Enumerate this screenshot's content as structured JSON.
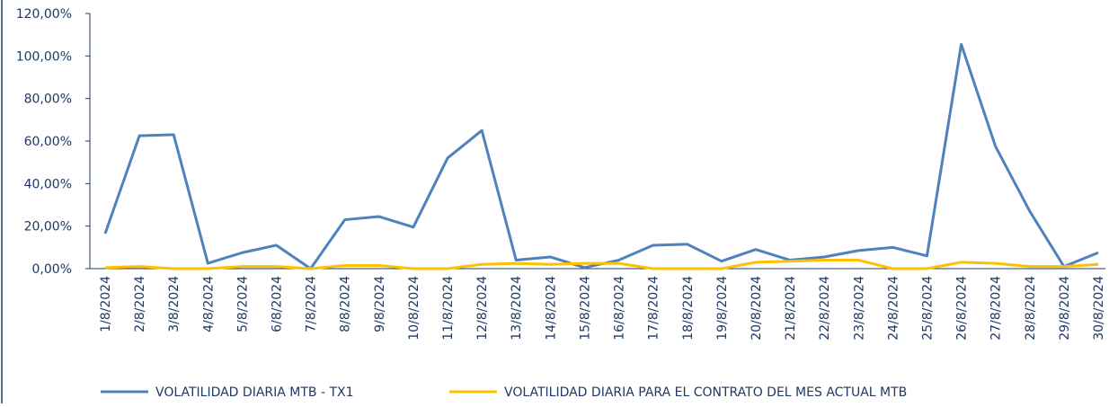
{
  "chart_data": {
    "type": "line",
    "categories": [
      "1/8/2024",
      "2/8/2024",
      "3/8/2024",
      "4/8/2024",
      "5/8/2024",
      "6/8/2024",
      "7/8/2024",
      "8/8/2024",
      "9/8/2024",
      "10/8/2024",
      "11/8/2024",
      "12/8/2024",
      "13/8/2024",
      "14/8/2024",
      "15/8/2024",
      "16/8/2024",
      "17/8/2024",
      "18/8/2024",
      "19/8/2024",
      "20/8/2024",
      "21/8/2024",
      "22/8/2024",
      "23/8/2024",
      "24/8/2024",
      "25/8/2024",
      "26/8/2024",
      "27/8/2024",
      "28/8/2024",
      "29/8/2024",
      "30/8/2024"
    ],
    "series": [
      {
        "name": "VOLATILIDAD DIARIA MTB - TX1",
        "color": "#4f81bd",
        "values": [
          16.5,
          62.5,
          63,
          2.5,
          7.5,
          11,
          0,
          23,
          24.5,
          19.5,
          52,
          65,
          4,
          5.5,
          0.5,
          4,
          11,
          11.5,
          3.5,
          9,
          4,
          5.5,
          8.5,
          10,
          6,
          105.5,
          57.5,
          27,
          1,
          7.5
        ]
      },
      {
        "name": "VOLATILIDAD DIARIA PARA EL CONTRATO DEL MES ACTUAL MTB",
        "color": "#ffc000",
        "values": [
          0.5,
          1,
          0,
          0,
          1,
          1,
          0,
          1.5,
          1.5,
          0,
          0,
          2,
          2.5,
          2,
          2.5,
          2.5,
          0,
          0,
          0,
          3,
          3.5,
          4,
          4,
          0,
          0,
          3,
          2.5,
          1,
          1,
          2
        ]
      }
    ],
    "ylim": [
      0,
      120
    ],
    "yticks": [
      {
        "value": 0,
        "label": "0,00%"
      },
      {
        "value": 20,
        "label": "20,00%"
      },
      {
        "value": 40,
        "label": "40,00%"
      },
      {
        "value": 60,
        "label": "60,00%"
      },
      {
        "value": 80,
        "label": "80,00%"
      },
      {
        "value": 100,
        "label": "100,00%"
      },
      {
        "value": 120,
        "label": "120,00%"
      }
    ],
    "grid": false
  }
}
